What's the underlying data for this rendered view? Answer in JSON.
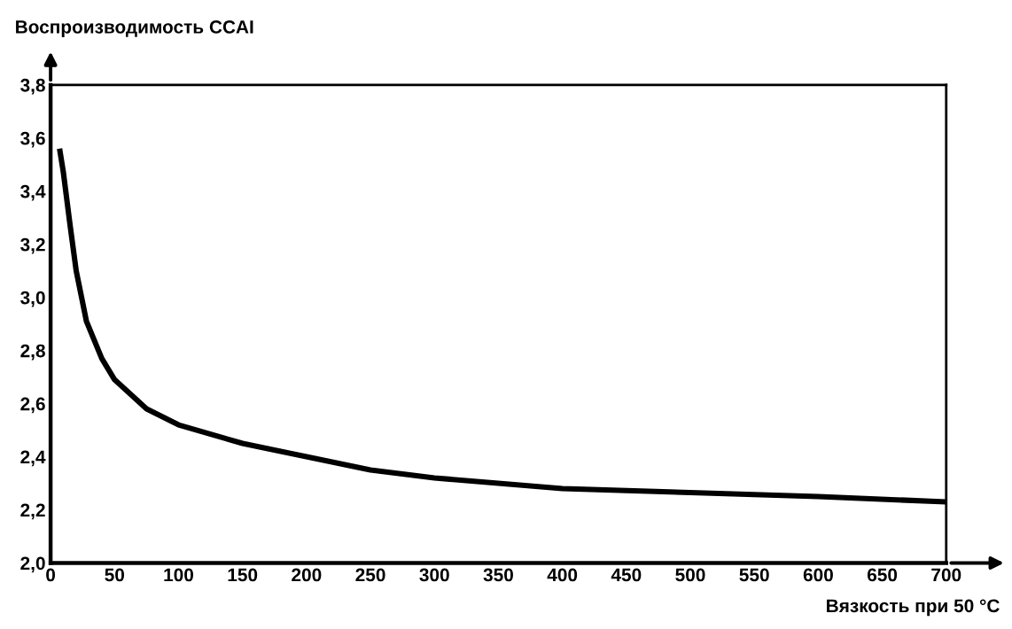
{
  "chart_data": {
    "type": "line",
    "xlabel": "Вязкость при 50 °C",
    "ylabel": "Воспроизводимость CCAI",
    "x": [
      7,
      10,
      15,
      20,
      28,
      40,
      50,
      75,
      100,
      150,
      200,
      250,
      300,
      400,
      500,
      600,
      700
    ],
    "series": [
      {
        "color": "#000000",
        "values": [
          3.56,
          3.47,
          3.28,
          3.1,
          2.91,
          2.77,
          2.69,
          2.58,
          2.52,
          2.45,
          2.4,
          2.35,
          2.32,
          2.28,
          2.265,
          2.25,
          2.23
        ]
      }
    ],
    "xlim": [
      0,
      700
    ],
    "ylim": [
      2.0,
      3.8
    ],
    "xticks": [
      0,
      50,
      100,
      150,
      200,
      250,
      300,
      350,
      400,
      450,
      500,
      550,
      600,
      650,
      700
    ],
    "yticks": [
      {
        "value": 2.0,
        "label": "2,0"
      },
      {
        "value": 2.2,
        "label": "2,2"
      },
      {
        "value": 2.4,
        "label": "2,4"
      },
      {
        "value": 2.6,
        "label": "2,6"
      },
      {
        "value": 2.8,
        "label": "2,8"
      },
      {
        "value": 3.0,
        "label": "3,0"
      },
      {
        "value": 3.2,
        "label": "3,2"
      },
      {
        "value": 3.4,
        "label": "3,4"
      },
      {
        "value": 3.6,
        "label": "3,6"
      },
      {
        "value": 3.8,
        "label": "3,8"
      }
    ],
    "grid": false,
    "marker": "none",
    "line_style": "solid"
  }
}
